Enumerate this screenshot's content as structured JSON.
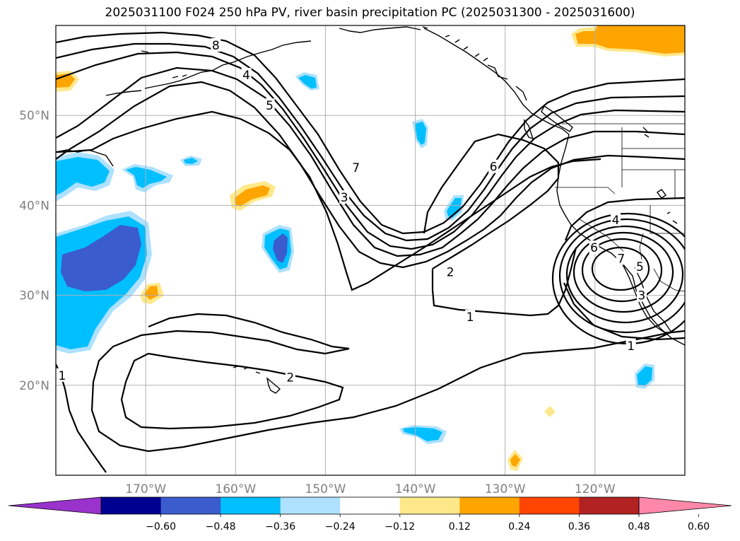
{
  "chart_data": {
    "type": "heatmap",
    "title": "2025031100 F024 250 hPa PV, river basin precipitation PC (2025031300 - 2025031600)",
    "projection": "map",
    "lon_range": [
      -180,
      -110
    ],
    "lat_range": [
      10,
      60
    ],
    "grid": true,
    "x_ticks": [
      {
        "value": -170,
        "label": "170°W"
      },
      {
        "value": -160,
        "label": "160°W"
      },
      {
        "value": -150,
        "label": "150°W"
      },
      {
        "value": -140,
        "label": "140°W"
      },
      {
        "value": -130,
        "label": "130°W"
      },
      {
        "value": -120,
        "label": "120°W"
      }
    ],
    "y_ticks": [
      {
        "value": 20,
        "label": "20°N"
      },
      {
        "value": 30,
        "label": "30°N"
      },
      {
        "value": 40,
        "label": "40°N"
      },
      {
        "value": 50,
        "label": "50°N"
      }
    ],
    "colorbar": {
      "orientation": "horizontal",
      "extend": "both",
      "ticks": [
        "−0.60",
        "−0.48",
        "−0.36",
        "−0.24",
        "−0.12",
        "0.12",
        "0.24",
        "0.36",
        "0.48",
        "0.60"
      ],
      "colors": [
        "#9933cc",
        "#000090",
        "#3a5ccc",
        "#00bfff",
        "#aee1ff",
        "#ffffff",
        "#ffe88a",
        "#ffa500",
        "#ff4500",
        "#b22222",
        "#ff88aa"
      ]
    },
    "pv_contour_labels": [
      {
        "text": "8",
        "lon": -162.2,
        "lat": 57.8
      },
      {
        "text": "4",
        "lon": -158.8,
        "lat": 54.5
      },
      {
        "text": "5",
        "lon": -156.2,
        "lat": 51.1
      },
      {
        "text": "7",
        "lon": -146.6,
        "lat": 44.2
      },
      {
        "text": "3",
        "lon": -147.9,
        "lat": 40.9
      },
      {
        "text": "6",
        "lon": -131.3,
        "lat": 44.3
      },
      {
        "text": "2",
        "lon": -136.1,
        "lat": 32.6
      },
      {
        "text": "1",
        "lon": -133.9,
        "lat": 27.6
      },
      {
        "text": "4",
        "lon": -117.7,
        "lat": 38.4
      },
      {
        "text": "6",
        "lon": -120.1,
        "lat": 35.3
      },
      {
        "text": "7",
        "lon": -117.1,
        "lat": 34.1
      },
      {
        "text": "5",
        "lon": -115.0,
        "lat": 33.2
      },
      {
        "text": "3",
        "lon": -114.8,
        "lat": 30.0
      },
      {
        "text": "1",
        "lon": -116.0,
        "lat": 24.4
      },
      {
        "text": "2",
        "lon": -153.9,
        "lat": 20.9
      },
      {
        "text": "1",
        "lon": -179.3,
        "lat": 21.1
      }
    ],
    "precip_pc_regions": [
      {
        "sign": "negative",
        "peak": "−0.36",
        "lon": -173,
        "lat": 33
      },
      {
        "sign": "negative",
        "peak": "−0.24",
        "lon": -176,
        "lat": 44
      },
      {
        "sign": "negative",
        "peak": "−0.24",
        "lon": -169,
        "lat": 43.5
      },
      {
        "sign": "negative",
        "peak": "−0.36",
        "lon": -155,
        "lat": 34.5
      },
      {
        "sign": "negative",
        "peak": "−0.24",
        "lon": -140,
        "lat": 47.5
      },
      {
        "sign": "negative",
        "peak": "−0.24",
        "lon": -136,
        "lat": 40
      },
      {
        "sign": "negative",
        "peak": "−0.24",
        "lon": -138.5,
        "lat": 14.5
      },
      {
        "sign": "negative",
        "peak": "−0.24",
        "lon": -115,
        "lat": 21
      },
      {
        "sign": "positive",
        "peak": "0.24",
        "lon": -157.5,
        "lat": 41.5
      },
      {
        "sign": "positive",
        "peak": "0.24",
        "lon": -169,
        "lat": 30.5
      },
      {
        "sign": "positive",
        "peak": "0.24",
        "lon": -116,
        "lat": 58.8
      },
      {
        "sign": "positive",
        "peak": "0.24",
        "lon": -178.5,
        "lat": 55.5
      },
      {
        "sign": "positive",
        "peak": "0.24",
        "lon": -129,
        "lat": 11.5
      },
      {
        "sign": "positive",
        "peak": "0.12",
        "lon": -125,
        "lat": 17
      }
    ]
  }
}
